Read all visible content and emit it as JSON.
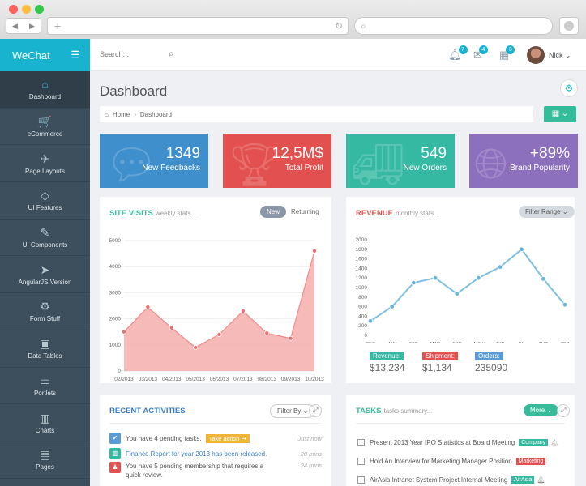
{
  "app": {
    "brand": "WeChat"
  },
  "sidebar": {
    "items": [
      {
        "label": "Dashboard",
        "icon": "home-icon",
        "glyph": "⌂"
      },
      {
        "label": "eCommerce",
        "icon": "cart-icon",
        "glyph": "🛒"
      },
      {
        "label": "Page Layouts",
        "icon": "rocket-icon",
        "glyph": "✈"
      },
      {
        "label": "UI Features",
        "icon": "diamond-icon",
        "glyph": "◇"
      },
      {
        "label": "UI Components",
        "icon": "puzzle-icon",
        "glyph": "✎"
      },
      {
        "label": "AngularJS Version",
        "icon": "send-icon",
        "glyph": "➤"
      },
      {
        "label": "Form Stuff",
        "icon": "settings-icon",
        "glyph": "⚙"
      },
      {
        "label": "Data Tables",
        "icon": "briefcase-icon",
        "glyph": "▣"
      },
      {
        "label": "Portlets",
        "icon": "folder-icon",
        "glyph": "▭"
      },
      {
        "label": "Charts",
        "icon": "bar-chart-icon",
        "glyph": "▥"
      },
      {
        "label": "Pages",
        "icon": "file-icon",
        "glyph": "▤"
      }
    ]
  },
  "topbar": {
    "search_placeholder": "Search...",
    "notif_count": "7",
    "mail_count": "4",
    "cal_count": "3",
    "user_name": "Nick"
  },
  "page": {
    "title": "Dashboard",
    "crumb_home": "Home",
    "crumb_current": "Dashboard"
  },
  "stats": [
    {
      "value": "1349",
      "label": "New Feedbacks",
      "color": "#3f8fcd"
    },
    {
      "value": "12,5M$",
      "label": "Total Profit",
      "color": "#e2514f"
    },
    {
      "value": "549",
      "label": "New Orders",
      "color": "#35b9a3"
    },
    {
      "value": "+89%",
      "label": "Brand Popularity",
      "color": "#8c6fbd"
    }
  ],
  "site_visits": {
    "title": "SITE VISITS",
    "subtitle": "weekly stats...",
    "tab_new": "New",
    "tab_returning": "Returning"
  },
  "revenue": {
    "title": "REVENUE",
    "subtitle": "monthly stats...",
    "filter": "Filter Range",
    "revenue_label": "Revenue:",
    "revenue_value": "$13,234",
    "shipment_label": "Shipment:",
    "shipment_value": "$1,134",
    "orders_label": "Orders:",
    "orders_value": "235090"
  },
  "activities": {
    "title": "RECENT ACTIVITIES",
    "filter": "Filter By",
    "items": [
      {
        "text": "You have 4 pending tasks.",
        "action": "Take action",
        "time": "Just now",
        "color": "#5b9bd5"
      },
      {
        "text": "Finance Report for year 2013 has been released.",
        "time": "20 mins",
        "color": "#35b9a3"
      },
      {
        "text": "You have 5 pending membership that requires a",
        "text2": "quick review.",
        "time": "24 mins",
        "color": "#e2514f"
      }
    ]
  },
  "tasks": {
    "title": "TASKS",
    "subtitle": "tasks summary...",
    "more": "More",
    "items": [
      {
        "text": "Present 2013 Year IPO Statistics at Board Meeting",
        "tag": "Company",
        "tag_color": "#35b9a3"
      },
      {
        "text": "Hold An Interview for Marketing Manager Position",
        "tag": "Marketing",
        "tag_color": "#e2514f"
      },
      {
        "text": "AirAsia Intranet System Project Internal Meeting",
        "tag": "AirAsia",
        "tag_color": "#35b9a3"
      }
    ]
  },
  "chart_data": [
    {
      "type": "area",
      "title": "SITE VISITS",
      "x": [
        "02/2013",
        "03/2013",
        "04/2013",
        "05/2013",
        "06/2013",
        "07/2013",
        "08/2013",
        "09/2013",
        "10/2013"
      ],
      "series": [
        {
          "values": [
            1500,
            2450,
            1650,
            900,
            1400,
            2300,
            1450,
            1250,
            4600
          ]
        }
      ],
      "ylim": [
        0,
        5000
      ],
      "yticks": [
        0,
        1000,
        2000,
        3000,
        4000,
        5000
      ],
      "color": "#f4a9a8"
    },
    {
      "type": "line",
      "title": "REVENUE",
      "x": [
        "DEC",
        "JAN",
        "FEB",
        "MAR",
        "APR",
        "MAY",
        "JUN",
        "JUL",
        "AUG",
        "SEP"
      ],
      "series": [
        {
          "values": [
            300,
            600,
            1100,
            1200,
            870,
            1200,
            1430,
            1800,
            1180,
            640
          ]
        }
      ],
      "ylim": [
        0,
        2000
      ],
      "yticks": [
        0,
        200,
        400,
        600,
        800,
        1000,
        1200,
        1400,
        1600,
        1800,
        2000
      ],
      "color": "#7fbfe0"
    }
  ]
}
